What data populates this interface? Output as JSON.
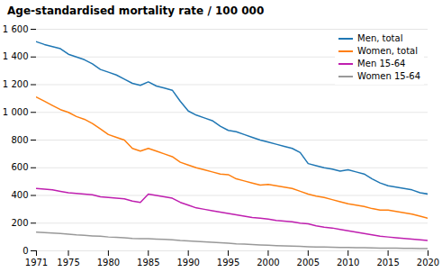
{
  "chart_data": {
    "type": "line",
    "title": "Age-standardised mortality rate / 100 000",
    "x": [
      1971,
      1972,
      1973,
      1974,
      1975,
      1976,
      1977,
      1978,
      1979,
      1980,
      1981,
      1982,
      1983,
      1984,
      1985,
      1986,
      1987,
      1988,
      1989,
      1990,
      1991,
      1992,
      1993,
      1994,
      1995,
      1996,
      1997,
      1998,
      1999,
      2000,
      2001,
      2002,
      2003,
      2004,
      2005,
      2006,
      2007,
      2008,
      2009,
      2010,
      2011,
      2012,
      2013,
      2014,
      2015,
      2016,
      2017,
      2018,
      2019,
      2020
    ],
    "series": [
      {
        "name": "Men, total",
        "color": "#1f77b4",
        "values": [
          1510,
          1490,
          1475,
          1460,
          1420,
          1400,
          1380,
          1350,
          1310,
          1290,
          1270,
          1240,
          1210,
          1195,
          1220,
          1190,
          1175,
          1160,
          1080,
          1010,
          980,
          960,
          940,
          900,
          870,
          860,
          840,
          820,
          800,
          785,
          770,
          755,
          740,
          710,
          630,
          615,
          600,
          590,
          575,
          585,
          570,
          555,
          520,
          490,
          470,
          460,
          450,
          440,
          420,
          410
        ]
      },
      {
        "name": "Women, total",
        "color": "#ff7f0e",
        "values": [
          1110,
          1080,
          1050,
          1020,
          1000,
          970,
          950,
          920,
          880,
          840,
          820,
          800,
          740,
          720,
          740,
          720,
          700,
          680,
          640,
          620,
          600,
          585,
          570,
          555,
          550,
          520,
          505,
          490,
          475,
          480,
          470,
          460,
          450,
          430,
          410,
          395,
          385,
          370,
          355,
          340,
          330,
          320,
          305,
          295,
          295,
          285,
          275,
          265,
          250,
          235
        ]
      },
      {
        "name": "Men 15-64",
        "color": "#bf1faf",
        "values": [
          450,
          445,
          440,
          430,
          420,
          415,
          410,
          405,
          390,
          385,
          380,
          375,
          360,
          350,
          410,
          400,
          390,
          380,
          350,
          330,
          310,
          300,
          290,
          280,
          270,
          260,
          250,
          240,
          235,
          230,
          220,
          215,
          210,
          200,
          195,
          180,
          170,
          165,
          155,
          145,
          135,
          125,
          115,
          105,
          100,
          95,
          90,
          85,
          80,
          75
        ]
      },
      {
        "name": "Women 15-64",
        "color": "#999999",
        "values": [
          135,
          132,
          128,
          125,
          120,
          115,
          112,
          108,
          105,
          100,
          98,
          95,
          90,
          88,
          88,
          85,
          83,
          80,
          75,
          72,
          68,
          65,
          62,
          58,
          55,
          50,
          48,
          45,
          43,
          40,
          38,
          36,
          34,
          32,
          30,
          28,
          27,
          26,
          25,
          24,
          23,
          22,
          21,
          20,
          20,
          19,
          18,
          18,
          17,
          17
        ]
      }
    ],
    "xlim": [
      1971,
      2020
    ],
    "xticks": [
      1971,
      1975,
      1980,
      1985,
      1990,
      1995,
      2000,
      2005,
      2010,
      2015,
      2020
    ],
    "ylim": [
      0,
      1600
    ],
    "yticks": [
      0,
      200,
      400,
      600,
      800,
      {
        "value": 1000,
        "label": "1 000"
      },
      {
        "value": 1200,
        "label": "1 200"
      },
      {
        "value": 1400,
        "label": "1 400"
      },
      {
        "value": 1600,
        "label": "1 600"
      }
    ],
    "grid": true,
    "legend": "upper right"
  }
}
